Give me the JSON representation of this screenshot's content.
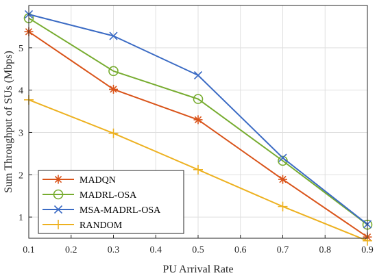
{
  "chart_data": {
    "type": "line",
    "xlabel": "PU Arrival Rate",
    "ylabel": "Sum Throughput of SUs (Mbps)",
    "xlim": [
      0.1,
      0.9
    ],
    "ylim": [
      0.5,
      6.0
    ],
    "xticks": [
      "0.1",
      "0.2",
      "0.3",
      "0.4",
      "0.5",
      "0.6",
      "0.7",
      "0.8",
      "0.9"
    ],
    "xtick_values": [
      0.1,
      0.2,
      0.3,
      0.4,
      0.5,
      0.6,
      0.7,
      0.8,
      0.9
    ],
    "yticks": [
      "1",
      "2",
      "3",
      "4",
      "5"
    ],
    "ytick_values": [
      1,
      2,
      3,
      4,
      5
    ],
    "grid": true,
    "legend_position": "bottom-left",
    "series": [
      {
        "name": "MADQN",
        "color": "#D95319",
        "marker": "asterisk",
        "x": [
          0.1,
          0.3,
          0.5,
          0.7,
          0.9
        ],
        "y": [
          5.38,
          4.02,
          3.3,
          1.89,
          0.53
        ]
      },
      {
        "name": "MADRL-OSA",
        "color": "#77AC30",
        "marker": "circle",
        "x": [
          0.1,
          0.3,
          0.5,
          0.7,
          0.9
        ],
        "y": [
          5.7,
          4.45,
          3.79,
          2.33,
          0.82
        ]
      },
      {
        "name": "MSA-MADRL-OSA",
        "color": "#3B6BC4",
        "marker": "cross",
        "x": [
          0.1,
          0.3,
          0.5,
          0.7,
          0.9
        ],
        "y": [
          5.79,
          5.28,
          4.35,
          2.4,
          0.83
        ]
      },
      {
        "name": "RANDOM",
        "color": "#EDB120",
        "marker": "plus",
        "x": [
          0.1,
          0.3,
          0.5,
          0.7,
          0.9
        ],
        "y": [
          3.77,
          2.98,
          2.12,
          1.25,
          0.44
        ]
      }
    ]
  }
}
